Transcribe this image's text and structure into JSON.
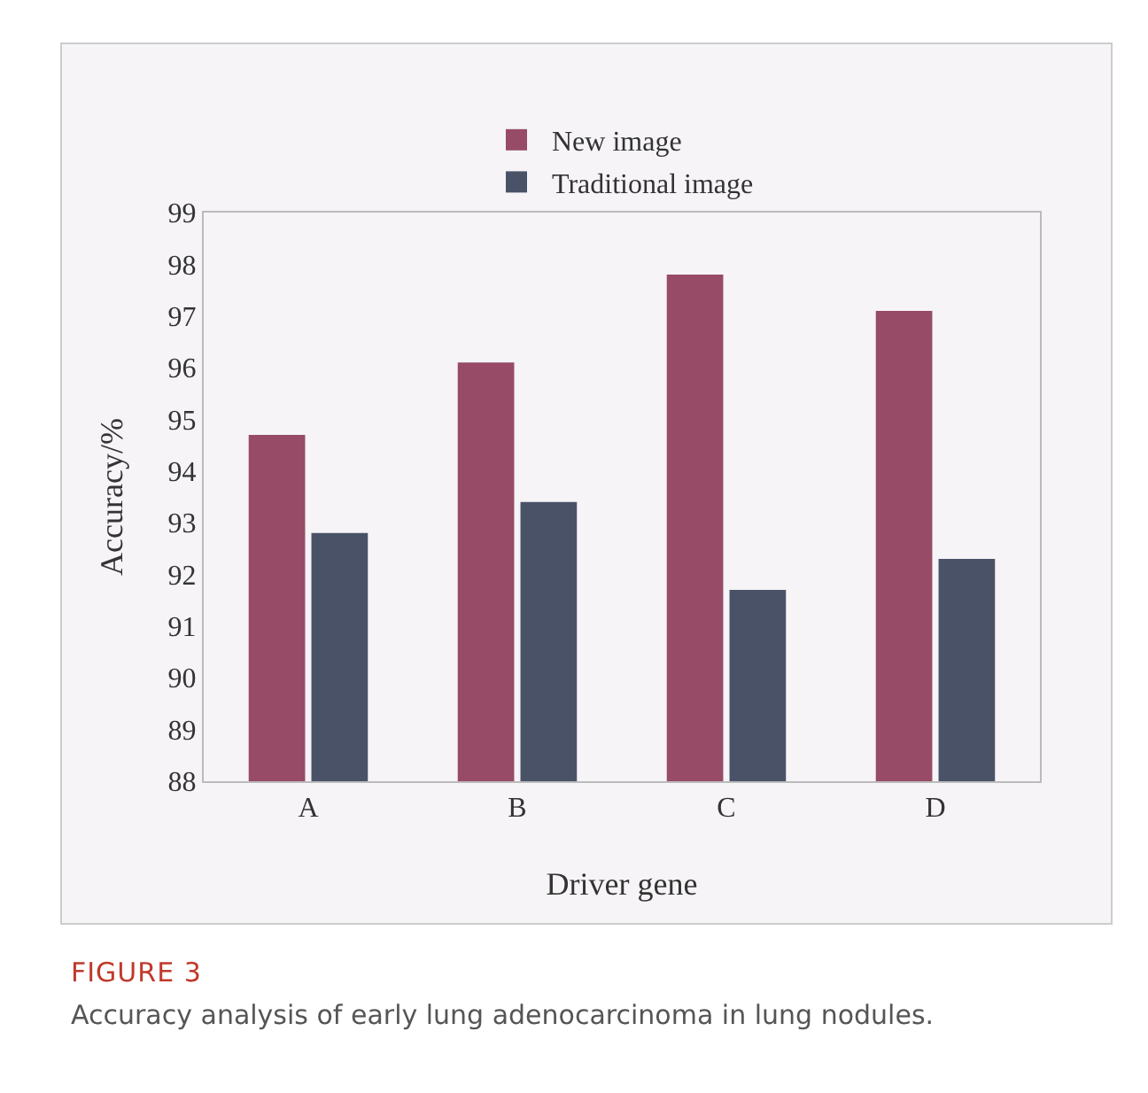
{
  "chart_data": {
    "type": "bar",
    "xlabel": "Driver gene",
    "ylabel": "Accuracy/%",
    "categories": [
      "A",
      "B",
      "C",
      "D"
    ],
    "series": [
      {
        "name": "New image",
        "color": "#974b66",
        "values": [
          94.7,
          96.1,
          97.8,
          97.1
        ]
      },
      {
        "name": "Traditional image",
        "color": "#4a5268",
        "values": [
          92.8,
          93.4,
          91.7,
          92.3
        ]
      }
    ],
    "ylim": [
      88,
      99
    ],
    "yticks": [
      88,
      89,
      90,
      91,
      92,
      93,
      94,
      95,
      96,
      97,
      98,
      99
    ],
    "grid": false,
    "legend": "top",
    "annotations": [
      "FIGURE 3",
      "Accuracy analysis of early lung adenocarcinoma in lung nodules."
    ]
  }
}
